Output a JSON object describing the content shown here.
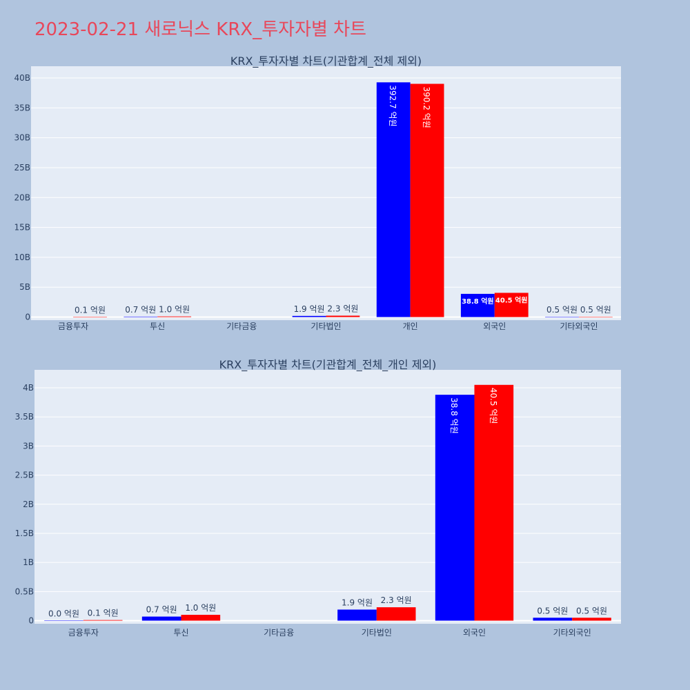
{
  "page": {
    "title": "2023-02-21 새로닉스 KRX_투자자별 차트"
  },
  "colors": {
    "series_1": "#0000ff",
    "series_2": "#ff0000",
    "plot_bg": "#e5ecf6",
    "page_bg": "#b0c4de",
    "title": "#e8475a"
  },
  "chart_data": [
    {
      "type": "bar",
      "title": "KRX_투자자별 차트(기관합계_전체 제외)",
      "categories": [
        "금융투자",
        "투신",
        "기타금융",
        "기타법인",
        "개인",
        "외국인",
        "기타외국인"
      ],
      "series": [
        {
          "values": [
            null,
            70000000,
            null,
            190000000,
            39270000000,
            3880000000,
            50000000
          ],
          "labels": [
            "",
            "0.7 억원",
            "",
            "1.9 억원",
            "392.7 억원",
            "38.8 억원",
            "0.5 억원"
          ]
        },
        {
          "values": [
            10000000,
            100000000,
            null,
            230000000,
            39020000000,
            4050000000,
            50000000
          ],
          "labels": [
            "0.1 억원",
            "1.0 억원",
            "",
            "2.3 억원",
            "390.2 억원",
            "40.5 억원",
            "0.5 억원"
          ]
        }
      ],
      "ylim": [
        0,
        41000000000
      ],
      "yticks": [
        "0",
        "5B",
        "10B",
        "15B",
        "20B",
        "25B",
        "30B",
        "35B",
        "40B"
      ],
      "grid": true
    },
    {
      "type": "bar",
      "title": "KRX_투자자별 차트(기관합계_전체_개인 제외)",
      "categories": [
        "금융투자",
        "투신",
        "기타금융",
        "기타법인",
        "외국인",
        "기타외국인"
      ],
      "series": [
        {
          "values": [
            0,
            70000000,
            null,
            190000000,
            3880000000,
            50000000
          ],
          "labels": [
            "0.0 억원",
            "0.7 억원",
            "",
            "1.9 억원",
            "38.8 억원",
            "0.5 억원"
          ]
        },
        {
          "values": [
            10000000,
            100000000,
            null,
            230000000,
            4050000000,
            50000000
          ],
          "labels": [
            "0.1 억원",
            "1.0 억원",
            "",
            "2.3 억원",
            "40.5 억원",
            "0.5 억원"
          ]
        }
      ],
      "ylim": [
        0,
        4200000000
      ],
      "yticks": [
        "0",
        "0.5B",
        "1B",
        "1.5B",
        "2B",
        "2.5B",
        "3B",
        "3.5B",
        "4B"
      ],
      "grid": true
    }
  ]
}
